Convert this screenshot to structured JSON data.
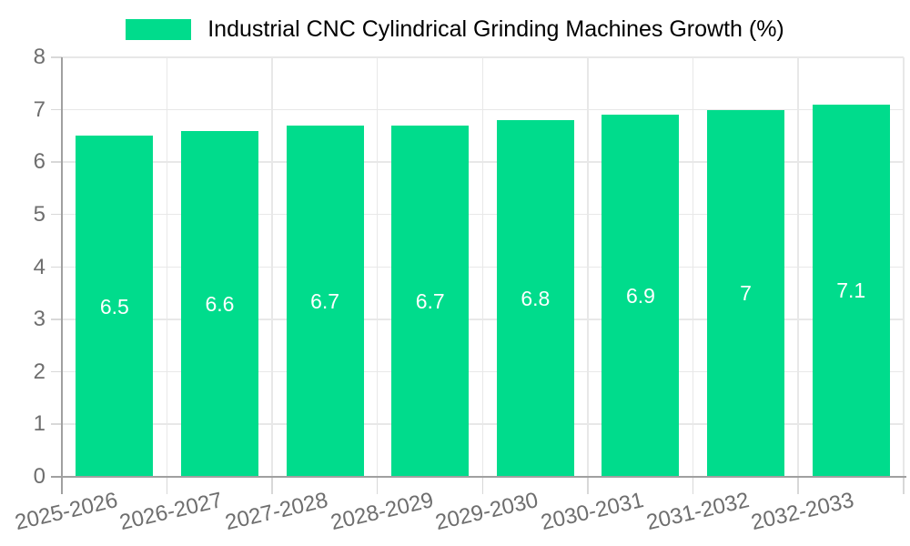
{
  "legend": {
    "label": "Industrial CNC Cylindrical Grinding Machines Growth (%)"
  },
  "chart_data": {
    "type": "bar",
    "title": "Industrial CNC Cylindrical Grinding Machines Growth (%)",
    "categories": [
      "2025-2026",
      "2026-2027",
      "2027-2028",
      "2028-2029",
      "2029-2030",
      "2030-2031",
      "2031-2032",
      "2032-2033"
    ],
    "values": [
      6.5,
      6.6,
      6.7,
      6.7,
      6.8,
      6.9,
      7,
      7.1
    ],
    "bar_labels": [
      "6.5",
      "6.6",
      "6.7",
      "6.7",
      "6.8",
      "6.9",
      "7",
      "7.1"
    ],
    "xlabel": "",
    "ylabel": "",
    "ylim": [
      0,
      8
    ],
    "y_ticks": [
      0,
      1,
      2,
      3,
      4,
      5,
      6,
      7,
      8
    ],
    "grid": true,
    "legend_position": "top",
    "value_labels_position": "center-inside"
  },
  "colors": {
    "bar": "#00DC8C",
    "bar_label": "#ffffff",
    "axis": "#a0a0a0",
    "grid": "#e8e8e8",
    "tick": "#d8d8d8",
    "text": "#6e6e6e",
    "background": "#ffffff"
  }
}
